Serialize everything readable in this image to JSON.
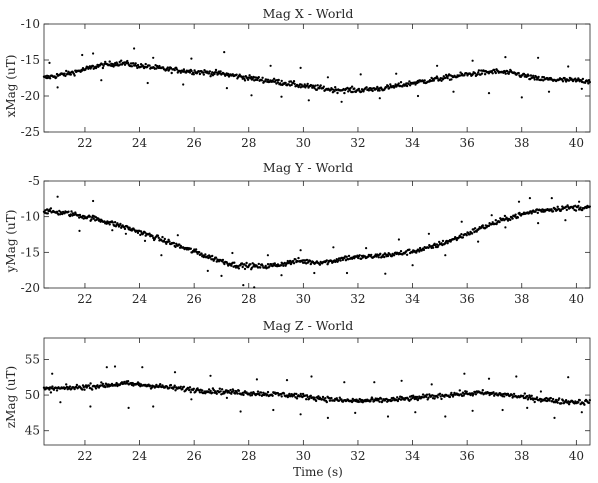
{
  "chart_data": [
    {
      "type": "scatter",
      "title": "Mag X - World",
      "xlabel": "",
      "ylabel": "xMag (uT)",
      "xlim": [
        20.5,
        40.5
      ],
      "ylim": [
        -25,
        -10
      ],
      "xticks": [
        22,
        24,
        26,
        28,
        30,
        32,
        34,
        36,
        38,
        40
      ],
      "yticks": [
        -25,
        -20,
        -15,
        -10
      ],
      "marker": "filled dots",
      "color": "#000000",
      "trend": [
        [
          20.5,
          -17.5
        ],
        [
          21.5,
          -16.8
        ],
        [
          22.5,
          -15.8
        ],
        [
          23.3,
          -15.4
        ],
        [
          24,
          -15.8
        ],
        [
          25,
          -16.3
        ],
        [
          26,
          -16.6
        ],
        [
          27,
          -16.9
        ],
        [
          28,
          -17.5
        ],
        [
          29,
          -18.0
        ],
        [
          30,
          -18.6
        ],
        [
          31,
          -19.1
        ],
        [
          32,
          -19.2
        ],
        [
          33,
          -18.9
        ],
        [
          34,
          -18.2
        ],
        [
          35,
          -17.6
        ],
        [
          36,
          -17.0
        ],
        [
          37,
          -16.6
        ],
        [
          37.8,
          -16.9
        ],
        [
          38.5,
          -17.6
        ],
        [
          39.5,
          -17.8
        ],
        [
          40.5,
          -17.9
        ]
      ],
      "outliers": [
        [
          20.7,
          -15.4
        ],
        [
          21.0,
          -18.8
        ],
        [
          21.9,
          -14.3
        ],
        [
          22.3,
          -14.1
        ],
        [
          22.6,
          -17.8
        ],
        [
          23.8,
          -13.4
        ],
        [
          24.3,
          -18.2
        ],
        [
          24.5,
          -14.7
        ],
        [
          25.6,
          -18.4
        ],
        [
          25.9,
          -14.8
        ],
        [
          27.1,
          -13.9
        ],
        [
          27.2,
          -18.9
        ],
        [
          28.1,
          -19.9
        ],
        [
          28.8,
          -15.8
        ],
        [
          29.2,
          -20.1
        ],
        [
          29.9,
          -16.1
        ],
        [
          30.2,
          -20.6
        ],
        [
          30.9,
          -17.4
        ],
        [
          31.4,
          -20.8
        ],
        [
          32.1,
          -17.0
        ],
        [
          32.8,
          -20.3
        ],
        [
          33.4,
          -16.9
        ],
        [
          34.2,
          -20.0
        ],
        [
          34.9,
          -15.8
        ],
        [
          35.5,
          -19.4
        ],
        [
          36.2,
          -15.1
        ],
        [
          36.8,
          -19.6
        ],
        [
          37.4,
          -14.6
        ],
        [
          38.0,
          -20.2
        ],
        [
          38.6,
          -14.7
        ],
        [
          39.0,
          -19.4
        ],
        [
          39.7,
          -15.9
        ],
        [
          40.2,
          -19.0
        ]
      ]
    },
    {
      "type": "scatter",
      "title": "Mag Y - World",
      "xlabel": "",
      "ylabel": "yMag (uT)",
      "xlim": [
        20.5,
        40.5
      ],
      "ylim": [
        -20,
        -5
      ],
      "xticks": [
        22,
        24,
        26,
        28,
        30,
        32,
        34,
        36,
        38,
        40
      ],
      "yticks": [
        -20,
        -15,
        -10,
        -5
      ],
      "marker": "filled dots",
      "color": "#000000",
      "trend": [
        [
          20.5,
          -9.2
        ],
        [
          21.5,
          -9.6
        ],
        [
          22.5,
          -10.4
        ],
        [
          23.5,
          -11.5
        ],
        [
          24.5,
          -12.8
        ],
        [
          25.5,
          -14.2
        ],
        [
          26.5,
          -15.6
        ],
        [
          27.5,
          -16.8
        ],
        [
          28.5,
          -17.0
        ],
        [
          29.0,
          -16.8
        ],
        [
          29.8,
          -16.2
        ],
        [
          30.5,
          -16.4
        ],
        [
          31.0,
          -16.3
        ],
        [
          31.5,
          -15.8
        ],
        [
          32.5,
          -15.6
        ],
        [
          33.5,
          -15.2
        ],
        [
          34.5,
          -14.5
        ],
        [
          35.5,
          -13.2
        ],
        [
          36.5,
          -11.6
        ],
        [
          37.5,
          -10.2
        ],
        [
          38.5,
          -9.2
        ],
        [
          39.5,
          -8.8
        ],
        [
          40.5,
          -8.7
        ]
      ],
      "outliers": [
        [
          21.0,
          -7.2
        ],
        [
          21.8,
          -12.0
        ],
        [
          22.3,
          -7.8
        ],
        [
          23.0,
          -11.9
        ],
        [
          23.5,
          -12.4
        ],
        [
          24.2,
          -13.4
        ],
        [
          24.8,
          -15.4
        ],
        [
          25.4,
          -12.6
        ],
        [
          26.0,
          -14.6
        ],
        [
          26.5,
          -17.6
        ],
        [
          27.0,
          -18.3
        ],
        [
          27.4,
          -15.1
        ],
        [
          27.8,
          -19.6
        ],
        [
          28.2,
          -19.9
        ],
        [
          28.7,
          -15.4
        ],
        [
          29.2,
          -18.2
        ],
        [
          29.9,
          -14.7
        ],
        [
          30.4,
          -17.9
        ],
        [
          31.1,
          -14.3
        ],
        [
          31.6,
          -17.9
        ],
        [
          32.3,
          -14.4
        ],
        [
          33.0,
          -18.0
        ],
        [
          33.5,
          -13.2
        ],
        [
          34.0,
          -16.8
        ],
        [
          34.6,
          -12.4
        ],
        [
          35.2,
          -15.4
        ],
        [
          35.8,
          -10.7
        ],
        [
          36.4,
          -13.5
        ],
        [
          36.9,
          -9.8
        ],
        [
          37.4,
          -11.5
        ],
        [
          37.9,
          -7.9
        ],
        [
          38.3,
          -7.4
        ],
        [
          38.6,
          -10.9
        ],
        [
          39.1,
          -7.4
        ],
        [
          39.6,
          -10.5
        ],
        [
          40.1,
          -7.9
        ]
      ]
    },
    {
      "type": "scatter",
      "title": "Mag Z - World",
      "xlabel": "Time (s)",
      "ylabel": "zMag (uT)",
      "xlim": [
        20.5,
        40.5
      ],
      "ylim": [
        43,
        58
      ],
      "xticks": [
        22,
        24,
        26,
        28,
        30,
        32,
        34,
        36,
        38,
        40
      ],
      "yticks": [
        45,
        50,
        55
      ],
      "marker": "filled dots",
      "color": "#000000",
      "trend": [
        [
          20.5,
          50.8
        ],
        [
          21.5,
          51.0
        ],
        [
          22.5,
          51.3
        ],
        [
          23.5,
          51.6
        ],
        [
          24.5,
          51.3
        ],
        [
          25.5,
          50.9
        ],
        [
          26.5,
          50.6
        ],
        [
          27.5,
          50.4
        ],
        [
          28.5,
          50.2
        ],
        [
          29.5,
          50.0
        ],
        [
          30.5,
          49.6
        ],
        [
          31.5,
          49.2
        ],
        [
          32.5,
          49.2
        ],
        [
          33.5,
          49.4
        ],
        [
          34.5,
          49.7
        ],
        [
          35.5,
          50.1
        ],
        [
          36.5,
          50.3
        ],
        [
          37.5,
          50.0
        ],
        [
          38.5,
          49.5
        ],
        [
          39.5,
          49.1
        ],
        [
          40.5,
          49.0
        ]
      ],
      "outliers": [
        [
          20.8,
          53.0
        ],
        [
          21.1,
          49.0
        ],
        [
          22.2,
          48.4
        ],
        [
          22.8,
          53.9
        ],
        [
          23.1,
          54.0
        ],
        [
          23.6,
          48.2
        ],
        [
          24.1,
          53.9
        ],
        [
          24.5,
          48.4
        ],
        [
          25.3,
          53.2
        ],
        [
          25.9,
          49.4
        ],
        [
          26.6,
          52.7
        ],
        [
          27.2,
          49.6
        ],
        [
          27.7,
          47.7
        ],
        [
          28.3,
          52.2
        ],
        [
          28.9,
          47.9
        ],
        [
          29.4,
          52.1
        ],
        [
          29.9,
          47.3
        ],
        [
          30.3,
          52.6
        ],
        [
          30.9,
          46.8
        ],
        [
          31.5,
          51.8
        ],
        [
          31.9,
          47.5
        ],
        [
          32.6,
          51.8
        ],
        [
          33.1,
          47.0
        ],
        [
          33.6,
          52.0
        ],
        [
          34.1,
          47.6
        ],
        [
          34.7,
          51.5
        ],
        [
          35.2,
          47.0
        ],
        [
          35.9,
          53.0
        ],
        [
          36.2,
          47.8
        ],
        [
          36.8,
          52.3
        ],
        [
          37.3,
          47.9
        ],
        [
          37.8,
          52.6
        ],
        [
          38.2,
          48.2
        ],
        [
          38.7,
          50.5
        ],
        [
          39.2,
          46.8
        ],
        [
          39.7,
          52.5
        ],
        [
          40.2,
          47.6
        ]
      ]
    }
  ]
}
